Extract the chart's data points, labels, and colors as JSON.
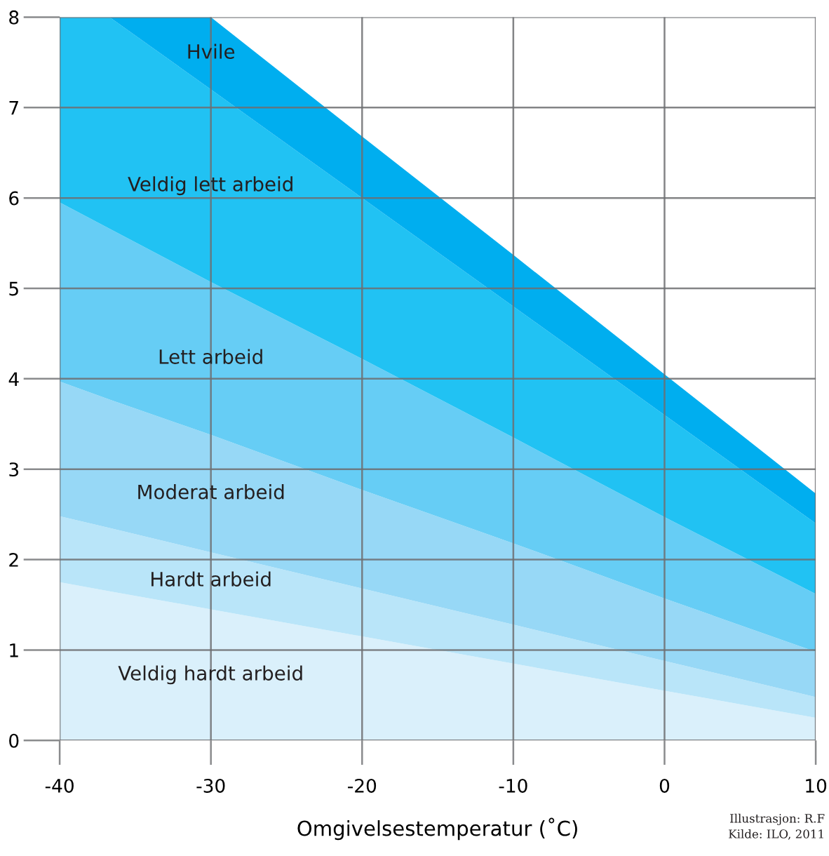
{
  "chart_data": {
    "type": "area",
    "stacked": true,
    "xlabel": "Omgivelsestemperatur (˚C)",
    "x": [
      -40,
      -36.7,
      -30,
      -20,
      -10,
      0,
      10
    ],
    "xlim": [
      -40,
      10
    ],
    "xticks": [
      -40,
      -30,
      -20,
      -10,
      0,
      10
    ],
    "ylim": [
      0,
      8
    ],
    "yticks": [
      0,
      1,
      2,
      3,
      4,
      5,
      6,
      7,
      8
    ],
    "grid": true,
    "series": [
      {
        "name": "Veldig hardt arbeid",
        "color": "#daf0fb",
        "values": [
          1.75,
          1.65,
          1.45,
          1.15,
          0.85,
          0.55,
          0.25
        ]
      },
      {
        "name": "Hardt arbeid",
        "color": "#b9e5f9",
        "values": [
          0.73,
          0.7,
          0.63,
          0.53,
          0.43,
          0.33,
          0.23
        ]
      },
      {
        "name": "Moderat arbeid",
        "color": "#97d8f6",
        "values": [
          1.49,
          1.42,
          1.3,
          1.09,
          0.9,
          0.69,
          0.5
        ]
      },
      {
        "name": "Lett arbeid",
        "color": "#66cdf5",
        "values": [
          1.98,
          1.89,
          1.69,
          1.45,
          1.17,
          0.9,
          0.64
        ]
      },
      {
        "name": "Veldig lett arbeid",
        "color": "#21c2f3",
        "values": [
          2.05,
          2.34,
          2.13,
          1.78,
          1.45,
          1.13,
          0.78
        ]
      },
      {
        "name": "Hvile",
        "color": "#00aeef",
        "values": [
          0,
          0,
          0.8,
          0.68,
          0.57,
          0.45,
          0.33
        ]
      }
    ],
    "annotations": [
      "Illustrasjon: R.F",
      "Kilde: ILO, 2011"
    ]
  }
}
